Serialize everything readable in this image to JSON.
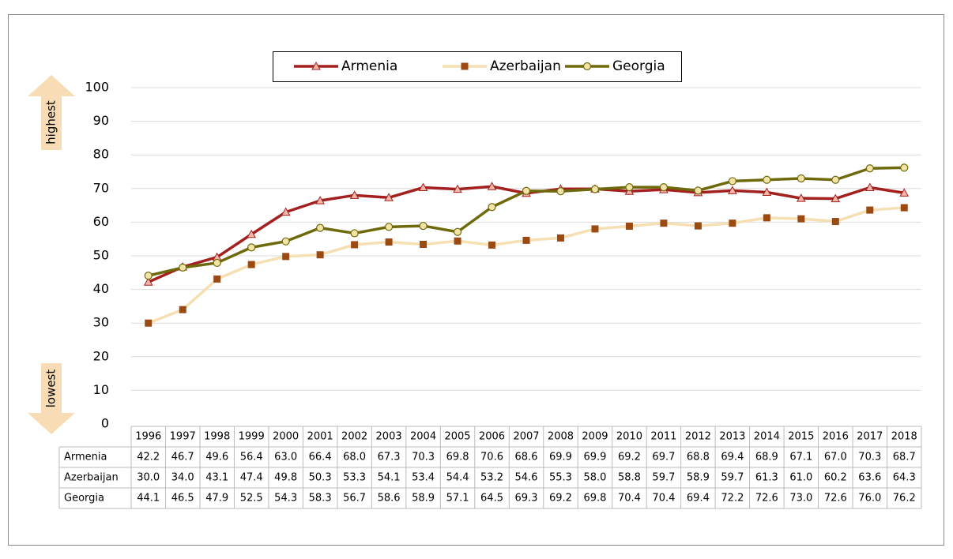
{
  "chart_data": {
    "type": "line",
    "annotations": {
      "top": "highest",
      "bottom": "lowest"
    },
    "categories": [
      "1996",
      "1997",
      "1998",
      "1999",
      "2000",
      "2001",
      "2002",
      "2003",
      "2004",
      "2005",
      "2006",
      "2007",
      "2008",
      "2009",
      "2010",
      "2011",
      "2012",
      "2013",
      "2014",
      "2015",
      "2016",
      "2017",
      "2018"
    ],
    "series": [
      {
        "name": "Armenia",
        "color": "#a3201f",
        "marker": "triangle",
        "marker_fill": "#f4b6a8",
        "values": [
          42.2,
          46.7,
          49.6,
          56.4,
          63.0,
          66.4,
          68.0,
          67.3,
          70.3,
          69.8,
          70.6,
          68.6,
          69.9,
          69.9,
          69.2,
          69.7,
          68.8,
          69.4,
          68.9,
          67.1,
          67.0,
          70.3,
          68.7
        ],
        "value_labels": [
          "42.2",
          "46.7",
          "49.6",
          "56.4",
          "63.0",
          "66.4",
          "68.0",
          "67.3",
          "70.3",
          "69.8",
          "70.6",
          "68.6",
          "69.9",
          "69.9",
          "69.2",
          "69.7",
          "68.8",
          "69.4",
          "68.9",
          "67.1",
          "67.0",
          "70.3",
          "68.7"
        ]
      },
      {
        "name": "Azerbaijan",
        "color": "#f6dfb3",
        "marker": "square",
        "marker_fill": "#9a4a12",
        "values": [
          30.0,
          34.0,
          43.1,
          47.4,
          49.8,
          50.3,
          53.3,
          54.1,
          53.4,
          54.4,
          53.2,
          54.6,
          55.3,
          58.0,
          58.8,
          59.7,
          58.9,
          59.7,
          61.3,
          61.0,
          60.2,
          63.6,
          64.3
        ],
        "value_labels": [
          "30.0",
          "34.0",
          "43.1",
          "47.4",
          "49.8",
          "50.3",
          "53.3",
          "54.1",
          "53.4",
          "54.4",
          "53.2",
          "54.6",
          "55.3",
          "58.0",
          "58.8",
          "59.7",
          "58.9",
          "59.7",
          "61.3",
          "61.0",
          "60.2",
          "63.6",
          "64.3"
        ]
      },
      {
        "name": "Georgia",
        "color": "#6e6a0c",
        "marker": "circle",
        "marker_fill": "#f3e3a6",
        "values": [
          44.1,
          46.5,
          47.9,
          52.5,
          54.3,
          58.3,
          56.7,
          58.6,
          58.9,
          57.1,
          64.5,
          69.3,
          69.2,
          69.8,
          70.4,
          70.4,
          69.4,
          72.2,
          72.6,
          73.0,
          72.6,
          76.0,
          76.2
        ],
        "value_labels": [
          "44.1",
          "46.5",
          "47.9",
          "52.5",
          "54.3",
          "58.3",
          "56.7",
          "58.6",
          "58.9",
          "57.1",
          "64.5",
          "69.3",
          "69.2",
          "69.8",
          "70.4",
          "70.4",
          "69.4",
          "72.2",
          "72.6",
          "73.0",
          "72.6",
          "76.0",
          "76.2"
        ]
      }
    ],
    "ylim": [
      0,
      100
    ],
    "yticks": [
      0,
      10,
      20,
      30,
      40,
      50,
      60,
      70,
      80,
      90,
      100
    ],
    "grid": true
  }
}
